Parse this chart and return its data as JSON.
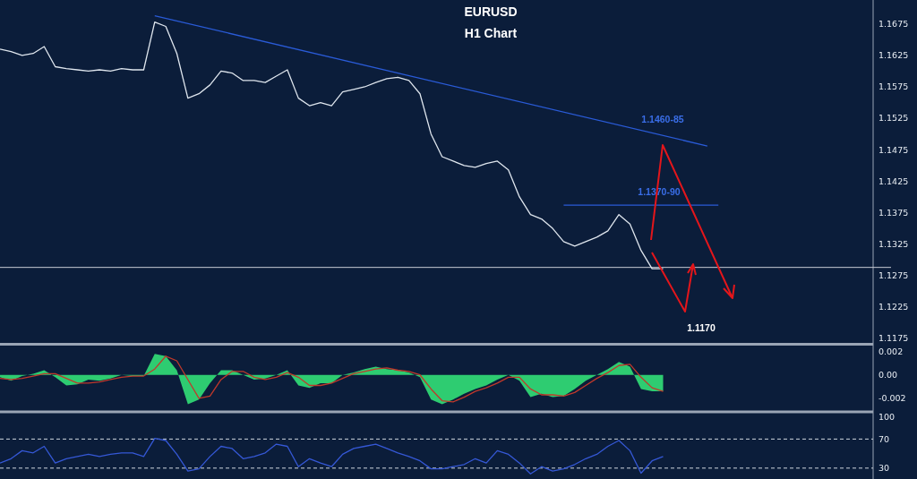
{
  "chart_data": [
    {
      "type": "line",
      "title": "EURUSD",
      "subtitle": "H1 Chart",
      "categories": [
        null,
        null,
        null,
        null,
        null,
        null,
        null,
        null,
        null,
        null,
        null,
        null,
        null,
        null,
        null,
        null,
        null,
        null,
        null,
        null,
        null,
        null,
        null,
        null,
        null,
        null,
        null,
        null,
        null,
        null,
        null,
        null,
        null,
        null,
        null,
        null,
        null,
        null,
        null,
        null,
        null,
        null,
        null,
        null,
        null,
        null,
        null,
        null,
        null,
        null,
        null,
        null,
        null,
        null,
        null,
        null,
        null,
        null,
        null,
        null,
        null,
        null,
        null,
        null,
        null,
        null,
        null,
        null,
        null,
        null,
        null,
        null,
        null,
        null,
        null,
        null,
        null,
        null,
        null,
        null
      ],
      "series": [
        {
          "color": "#dfe6ee",
          "values": [
            1.1635,
            1.1631,
            1.1625,
            1.1628,
            1.1639,
            1.1607,
            1.1604,
            1.1602,
            1.16,
            1.1602,
            1.16,
            1.1604,
            1.1602,
            1.1602,
            1.1678,
            1.1671,
            1.1628,
            1.1557,
            1.1564,
            1.1578,
            1.16,
            1.1597,
            1.1585,
            1.1585,
            1.1582,
            1.1592,
            1.1602,
            1.1557,
            1.1545,
            1.155,
            1.1545,
            1.1567,
            1.1571,
            1.1575,
            1.1582,
            1.1588,
            1.159,
            1.1585,
            1.1564,
            1.15,
            1.1464,
            1.1457,
            1.145,
            1.1447,
            1.1453,
            1.1457,
            1.1443,
            1.14,
            1.1372,
            1.1365,
            1.135,
            1.1329,
            1.1322,
            1.1329,
            1.1336,
            1.1346,
            1.1372,
            1.1357,
            1.1315,
            1.1286,
            1.1286,
            null,
            null,
            null,
            null,
            null,
            null,
            null,
            null,
            null,
            null,
            null,
            null,
            null,
            null,
            null,
            null,
            null,
            null,
            null
          ]
        },
        {
          "type": "line",
          "color": "#2a5bd7",
          "values": [
            null,
            null,
            null,
            null,
            null,
            null,
            null,
            null,
            null,
            null,
            null,
            null,
            null,
            null,
            1.1688,
            null,
            null,
            null,
            null,
            null,
            null,
            null,
            null,
            null,
            null,
            null,
            null,
            null,
            null,
            null,
            null,
            null,
            null,
            null,
            null,
            null,
            null,
            null,
            null,
            null,
            null,
            null,
            null,
            null,
            null,
            null,
            null,
            null,
            null,
            null,
            null,
            null,
            null,
            null,
            null,
            null,
            null,
            null,
            null,
            null,
            null,
            null,
            null,
            null,
            1.1481,
            null,
            null,
            null,
            null,
            null,
            null,
            null,
            null,
            null,
            null,
            null,
            null,
            null,
            null,
            null
          ]
        },
        {
          "type": "line",
          "color": "#2a5bd7",
          "values": [
            null,
            null,
            null,
            null,
            null,
            null,
            null,
            null,
            null,
            null,
            null,
            null,
            null,
            null,
            null,
            null,
            null,
            null,
            null,
            null,
            null,
            null,
            null,
            null,
            null,
            null,
            null,
            null,
            null,
            null,
            null,
            null,
            null,
            null,
            null,
            null,
            null,
            null,
            null,
            null,
            null,
            null,
            null,
            null,
            null,
            null,
            null,
            null,
            null,
            null,
            null,
            1.1387,
            null,
            null,
            null,
            null,
            null,
            null,
            null,
            null,
            null,
            null,
            null,
            null,
            null,
            1.1387,
            null,
            null,
            null,
            null,
            null,
            null,
            null,
            null,
            null,
            null,
            null,
            null,
            null,
            null
          ]
        }
      ],
      "ylim": [
        1.1168,
        1.1713
      ],
      "yticks": [
        1.1675,
        1.1625,
        1.1575,
        1.1525,
        1.1475,
        1.1425,
        1.1375,
        1.1325,
        1.1275,
        1.1225,
        1.1175
      ],
      "ref_lines": [
        {
          "axis": "y",
          "value": 1.1288,
          "color": "#c8cdd5"
        }
      ],
      "annotations": [
        "1.1460-85",
        "1.1370-90",
        "1.1170"
      ],
      "tick_labels": "y",
      "grid": false
    },
    {
      "type": "area",
      "categories": [
        null,
        null,
        null,
        null,
        null,
        null,
        null,
        null,
        null,
        null,
        null,
        null,
        null,
        null,
        null,
        null,
        null,
        null,
        null,
        null,
        null,
        null,
        null,
        null,
        null,
        null,
        null,
        null,
        null,
        null,
        null,
        null,
        null,
        null,
        null,
        null,
        null,
        null,
        null,
        null,
        null,
        null,
        null,
        null,
        null,
        null,
        null,
        null,
        null,
        null,
        null,
        null,
        null,
        null,
        null,
        null,
        null,
        null,
        null,
        null,
        null,
        null,
        null,
        null,
        null,
        null,
        null,
        null,
        null,
        null,
        null,
        null,
        null,
        null,
        null,
        null,
        null,
        null,
        null,
        null
      ],
      "series": [
        {
          "color": "#2ecc71",
          "values": [
            -0.0002,
            -0.0005,
            -0.0001,
            0.0001,
            0.0004,
            -0.0002,
            -0.0009,
            -0.0008,
            -0.0004,
            -0.0005,
            -0.0003,
            0,
            -0.0001,
            -0.0001,
            0.0018,
            0.0016,
            0.0004,
            -0.0025,
            -0.0021,
            -0.0007,
            0.0004,
            0.0004,
            0,
            -0.0004,
            -0.0003,
            0,
            0.0004,
            -0.0009,
            -0.0011,
            -0.0007,
            -0.0007,
            0,
            0.0002,
            0.0005,
            0.0007,
            0.0005,
            0.0004,
            0.0002,
            -0.0002,
            -0.0021,
            -0.0025,
            -0.0021,
            -0.0016,
            -0.0012,
            -0.0009,
            -0.0004,
            0,
            -0.0005,
            -0.0019,
            -0.0016,
            -0.0019,
            -0.0018,
            -0.0012,
            -0.0005,
            0,
            0.0005,
            0.0011,
            0.0007,
            -0.0012,
            -0.0014,
            -0.0014,
            null,
            null,
            null,
            null,
            null,
            null,
            null,
            null,
            null,
            null,
            null,
            null,
            null,
            null,
            null,
            null,
            null,
            null,
            null
          ]
        },
        {
          "type": "line",
          "color": "#c0392b",
          "values": [
            -0.0003,
            -0.0004,
            -0.0003,
            -0.0001,
            0.0001,
            0.0001,
            -0.0003,
            -0.0007,
            -0.0007,
            -0.0006,
            -0.0004,
            -0.0002,
            -0.0001,
            -0.0001,
            0.0005,
            0.0016,
            0.0012,
            -0.0004,
            -0.002,
            -0.0018,
            -0.0004,
            0.0003,
            0.0003,
            -0.0002,
            -0.0004,
            -0.0002,
            0.0002,
            -0.0002,
            -0.0009,
            -0.0009,
            -0.0007,
            -0.0003,
            0.0001,
            0.0003,
            0.0005,
            0.0006,
            0.0004,
            0.0003,
            0,
            -0.0012,
            -0.0022,
            -0.0023,
            -0.0019,
            -0.0014,
            -0.0011,
            -0.0007,
            -0.0002,
            -0.0002,
            -0.0012,
            -0.0017,
            -0.0017,
            -0.0018,
            -0.0015,
            -0.0009,
            -0.0003,
            0.0002,
            0.0008,
            0.0009,
            -0.0002,
            -0.0011,
            -0.0014,
            null,
            null,
            null,
            null,
            null,
            null,
            null,
            null,
            null,
            null,
            null,
            null,
            null,
            null,
            null,
            null,
            null,
            null,
            null
          ]
        }
      ],
      "ylim": [
        -0.003,
        0.0025
      ],
      "yticks": [
        {
          "value": 0.002,
          "label": "0.002"
        },
        {
          "value": 0,
          "label": "0.00"
        },
        {
          "value": -0.002,
          "label": "-0.002"
        }
      ],
      "tick_labels": "y",
      "grid": false
    },
    {
      "type": "line",
      "categories": [
        null,
        null,
        null,
        null,
        null,
        null,
        null,
        null,
        null,
        null,
        null,
        null,
        null,
        null,
        null,
        null,
        null,
        null,
        null,
        null,
        null,
        null,
        null,
        null,
        null,
        null,
        null,
        null,
        null,
        null,
        null,
        null,
        null,
        null,
        null,
        null,
        null,
        null,
        null,
        null,
        null,
        null,
        null,
        null,
        null,
        null,
        null,
        null,
        null,
        null,
        null,
        null,
        null,
        null,
        null,
        null,
        null,
        null,
        null,
        null,
        null,
        null,
        null,
        null,
        null,
        null,
        null,
        null,
        null,
        null,
        null,
        null,
        null,
        null,
        null,
        null,
        null,
        null,
        null,
        null
      ],
      "series": [
        {
          "color": "#3558d6",
          "values": [
            37,
            43,
            54,
            51,
            60,
            37,
            43,
            46,
            49,
            46,
            49,
            51,
            51,
            46,
            71,
            68,
            49,
            26,
            29,
            46,
            60,
            57,
            43,
            46,
            51,
            63,
            60,
            32,
            43,
            37,
            32,
            49,
            57,
            60,
            63,
            57,
            51,
            46,
            40,
            29,
            29,
            32,
            35,
            43,
            37,
            54,
            49,
            37,
            22,
            32,
            26,
            29,
            35,
            43,
            49,
            60,
            68,
            54,
            23,
            40,
            46,
            null,
            null,
            null,
            null,
            null,
            null,
            null,
            null,
            null,
            null,
            null,
            null,
            null,
            null,
            null,
            null,
            null,
            null,
            null
          ]
        }
      ],
      "ylim": [
        15,
        105
      ],
      "yticks": [
        100,
        70,
        30
      ],
      "ref_lines": [
        {
          "axis": "y",
          "value": 70,
          "color": "#cfd6df",
          "line_style": "dashed"
        },
        {
          "axis": "y",
          "value": 30,
          "color": "#cfd6df",
          "line_style": "dashed"
        }
      ],
      "tick_labels": "y",
      "grid": false
    }
  ]
}
